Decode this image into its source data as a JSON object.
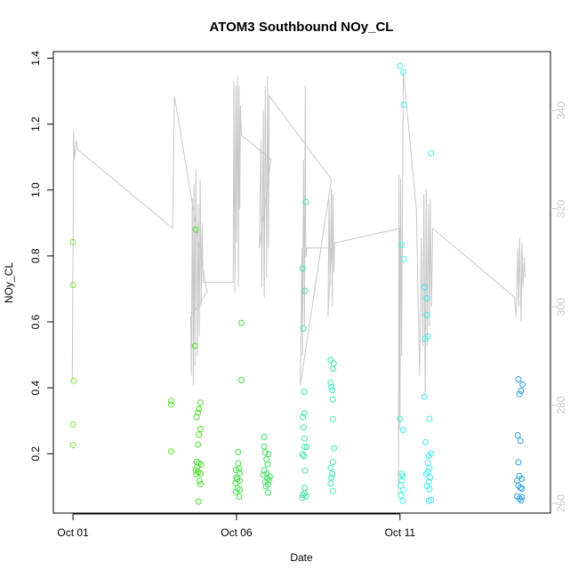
{
  "chart_data": {
    "type": "scatter",
    "title": "ATOM3 Southbound NOy_CL",
    "xlabel": "Date",
    "ylabel": "NOy_CL",
    "x_unit": "days after Oct 01",
    "xlim": [
      -0.6,
      14.6
    ],
    "ylim": [
      0.02,
      1.42
    ],
    "y2lim": [
      258,
      352
    ],
    "x_ticks": [
      {
        "v": 0,
        "label": "Oct 01"
      },
      {
        "v": 5,
        "label": "Oct 06"
      },
      {
        "v": 10,
        "label": "Oct 11"
      }
    ],
    "y_ticks": [
      {
        "v": 0.2,
        "label": "0.2"
      },
      {
        "v": 0.4,
        "label": "0.4"
      },
      {
        "v": 0.6,
        "label": "0.6"
      },
      {
        "v": 0.8,
        "label": "0.8"
      },
      {
        "v": 1.0,
        "label": "1.0"
      },
      {
        "v": 1.2,
        "label": "1.2"
      },
      {
        "v": 1.4,
        "label": "1.4"
      }
    ],
    "y2_ticks": [
      {
        "v": 260,
        "label": "260"
      },
      {
        "v": 280,
        "label": "280"
      },
      {
        "v": 300,
        "label": "300"
      },
      {
        "v": 320,
        "label": "320"
      },
      {
        "v": 340,
        "label": "340"
      }
    ],
    "grid": false,
    "colors": {
      "axis": "#000000",
      "secondary_axis": "#c8c8c8",
      "gray_line": "#c8c8c8"
    },
    "points": [
      {
        "x": 0.0,
        "y": 0.842,
        "color": "#7fe62b"
      },
      {
        "x": 0.0,
        "y": 0.712,
        "color": "#7fe62b"
      },
      {
        "x": 0.02,
        "y": 0.421,
        "color": "#7fe62b"
      },
      {
        "x": 0.0,
        "y": 0.289,
        "color": "#7fe62b"
      },
      {
        "x": 0.0,
        "y": 0.226,
        "color": "#7fe62b"
      },
      {
        "x": 3.0,
        "y": 0.36,
        "color": "#5fe02b"
      },
      {
        "x": 3.0,
        "y": 0.349,
        "color": "#5fe02b"
      },
      {
        "x": 3.0,
        "y": 0.207,
        "color": "#5fe02b"
      },
      {
        "x": 3.75,
        "y": 0.88,
        "color": "#4ce02c"
      },
      {
        "x": 3.73,
        "y": 0.527,
        "color": "#4ce02c"
      },
      {
        "x": 3.78,
        "y": 0.311,
        "color": "#4ce02c"
      },
      {
        "x": 3.9,
        "y": 0.355,
        "color": "#4ce02c"
      },
      {
        "x": 3.85,
        "y": 0.336,
        "color": "#4ce02c"
      },
      {
        "x": 3.82,
        "y": 0.325,
        "color": "#4ce02c"
      },
      {
        "x": 3.9,
        "y": 0.275,
        "color": "#4ce02c"
      },
      {
        "x": 3.85,
        "y": 0.258,
        "color": "#4ce02c"
      },
      {
        "x": 3.82,
        "y": 0.228,
        "color": "#4ce02c"
      },
      {
        "x": 3.78,
        "y": 0.176,
        "color": "#4ce02c"
      },
      {
        "x": 3.85,
        "y": 0.171,
        "color": "#4ce02c"
      },
      {
        "x": 3.92,
        "y": 0.167,
        "color": "#4ce02c"
      },
      {
        "x": 3.8,
        "y": 0.16,
        "color": "#4ce02c"
      },
      {
        "x": 3.75,
        "y": 0.15,
        "color": "#4ce02c"
      },
      {
        "x": 3.83,
        "y": 0.144,
        "color": "#4ce02c"
      },
      {
        "x": 3.9,
        "y": 0.14,
        "color": "#4ce02c"
      },
      {
        "x": 3.77,
        "y": 0.138,
        "color": "#4ce02c"
      },
      {
        "x": 3.87,
        "y": 0.118,
        "color": "#4ce02c"
      },
      {
        "x": 3.9,
        "y": 0.108,
        "color": "#4ce02c"
      },
      {
        "x": 3.84,
        "y": 0.055,
        "color": "#4ce02c"
      },
      {
        "x": 5.15,
        "y": 0.597,
        "color": "#3fe040"
      },
      {
        "x": 5.15,
        "y": 0.423,
        "color": "#3fe040"
      },
      {
        "x": 5.05,
        "y": 0.205,
        "color": "#3fe040"
      },
      {
        "x": 5.05,
        "y": 0.171,
        "color": "#3fe040"
      },
      {
        "x": 5.08,
        "y": 0.155,
        "color": "#3fe040"
      },
      {
        "x": 4.98,
        "y": 0.151,
        "color": "#3fe040"
      },
      {
        "x": 5.1,
        "y": 0.141,
        "color": "#3fe040"
      },
      {
        "x": 5.0,
        "y": 0.128,
        "color": "#3fe040"
      },
      {
        "x": 5.02,
        "y": 0.123,
        "color": "#3fe040"
      },
      {
        "x": 5.1,
        "y": 0.118,
        "color": "#3fe040"
      },
      {
        "x": 4.97,
        "y": 0.111,
        "color": "#3fe040"
      },
      {
        "x": 5.03,
        "y": 0.095,
        "color": "#3fe040"
      },
      {
        "x": 5.1,
        "y": 0.091,
        "color": "#3fe040"
      },
      {
        "x": 4.98,
        "y": 0.084,
        "color": "#3fe040"
      },
      {
        "x": 5.08,
        "y": 0.07,
        "color": "#3fe040"
      },
      {
        "x": 5.85,
        "y": 0.251,
        "color": "#40e060"
      },
      {
        "x": 5.85,
        "y": 0.222,
        "color": "#40e060"
      },
      {
        "x": 5.88,
        "y": 0.204,
        "color": "#40e060"
      },
      {
        "x": 5.98,
        "y": 0.199,
        "color": "#40e060"
      },
      {
        "x": 5.92,
        "y": 0.183,
        "color": "#40e060"
      },
      {
        "x": 5.95,
        "y": 0.168,
        "color": "#40e060"
      },
      {
        "x": 5.85,
        "y": 0.15,
        "color": "#40e060"
      },
      {
        "x": 5.92,
        "y": 0.14,
        "color": "#40e060"
      },
      {
        "x": 5.82,
        "y": 0.136,
        "color": "#40e060"
      },
      {
        "x": 6.02,
        "y": 0.131,
        "color": "#40e060"
      },
      {
        "x": 5.95,
        "y": 0.125,
        "color": "#40e060"
      },
      {
        "x": 6.0,
        "y": 0.12,
        "color": "#40e060"
      },
      {
        "x": 5.88,
        "y": 0.114,
        "color": "#40e060"
      },
      {
        "x": 5.96,
        "y": 0.107,
        "color": "#40e060"
      },
      {
        "x": 5.9,
        "y": 0.101,
        "color": "#40e060"
      },
      {
        "x": 5.97,
        "y": 0.082,
        "color": "#40e060"
      },
      {
        "x": 7.12,
        "y": 0.964,
        "color": "#3fe6a0"
      },
      {
        "x": 7.1,
        "y": 0.694,
        "color": "#3fe6a0"
      },
      {
        "x": 7.02,
        "y": 0.762,
        "color": "#3fe6a0"
      },
      {
        "x": 7.05,
        "y": 0.58,
        "color": "#3fe6a0"
      },
      {
        "x": 7.07,
        "y": 0.388,
        "color": "#3fe6a0"
      },
      {
        "x": 7.08,
        "y": 0.323,
        "color": "#3fe6a0"
      },
      {
        "x": 7.03,
        "y": 0.311,
        "color": "#3fe6a0"
      },
      {
        "x": 7.05,
        "y": 0.28,
        "color": "#3fe6a0"
      },
      {
        "x": 7.08,
        "y": 0.246,
        "color": "#3fe6a0"
      },
      {
        "x": 7.15,
        "y": 0.221,
        "color": "#3fe6a0"
      },
      {
        "x": 7.08,
        "y": 0.221,
        "color": "#3fe6a0"
      },
      {
        "x": 7.02,
        "y": 0.198,
        "color": "#3fe6a0"
      },
      {
        "x": 7.06,
        "y": 0.193,
        "color": "#3fe6a0"
      },
      {
        "x": 7.1,
        "y": 0.149,
        "color": "#3fe6a0"
      },
      {
        "x": 7.09,
        "y": 0.097,
        "color": "#3fe6a0"
      },
      {
        "x": 7.08,
        "y": 0.08,
        "color": "#3fe6a0"
      },
      {
        "x": 7.03,
        "y": 0.076,
        "color": "#3fe6a0"
      },
      {
        "x": 7.13,
        "y": 0.071,
        "color": "#3fe6a0"
      },
      {
        "x": 7.01,
        "y": 0.066,
        "color": "#3fe6a0"
      },
      {
        "x": 7.88,
        "y": 0.485,
        "color": "#40e6b8"
      },
      {
        "x": 7.97,
        "y": 0.474,
        "color": "#40e6b8"
      },
      {
        "x": 7.95,
        "y": 0.458,
        "color": "#40e6b8"
      },
      {
        "x": 7.88,
        "y": 0.416,
        "color": "#40e6b8"
      },
      {
        "x": 7.9,
        "y": 0.402,
        "color": "#40e6b8"
      },
      {
        "x": 7.93,
        "y": 0.393,
        "color": "#40e6b8"
      },
      {
        "x": 7.95,
        "y": 0.365,
        "color": "#40e6b8"
      },
      {
        "x": 7.95,
        "y": 0.305,
        "color": "#40e6b8"
      },
      {
        "x": 7.98,
        "y": 0.217,
        "color": "#40e6b8"
      },
      {
        "x": 7.95,
        "y": 0.175,
        "color": "#40e6b8"
      },
      {
        "x": 7.88,
        "y": 0.157,
        "color": "#40e6b8"
      },
      {
        "x": 7.93,
        "y": 0.139,
        "color": "#40e6b8"
      },
      {
        "x": 7.9,
        "y": 0.128,
        "color": "#40e6b8"
      },
      {
        "x": 7.88,
        "y": 0.11,
        "color": "#40e6b8"
      },
      {
        "x": 7.95,
        "y": 0.087,
        "color": "#40e6b8"
      },
      {
        "x": 10.0,
        "y": 1.376,
        "color": "#3ff0e6"
      },
      {
        "x": 10.12,
        "y": 1.259,
        "color": "#3ff0e6"
      },
      {
        "x": 10.1,
        "y": 1.357,
        "color": "#3ff0e6"
      },
      {
        "x": 10.05,
        "y": 0.833,
        "color": "#3ff0e6"
      },
      {
        "x": 10.12,
        "y": 0.791,
        "color": "#3ff0e6"
      },
      {
        "x": 10.0,
        "y": 0.306,
        "color": "#3ff0e6"
      },
      {
        "x": 10.1,
        "y": 0.272,
        "color": "#3ff0e6"
      },
      {
        "x": 10.05,
        "y": 0.139,
        "color": "#3ff0e6"
      },
      {
        "x": 10.08,
        "y": 0.132,
        "color": "#3ff0e6"
      },
      {
        "x": 10.05,
        "y": 0.119,
        "color": "#3ff0e6"
      },
      {
        "x": 10.02,
        "y": 0.103,
        "color": "#3ff0e6"
      },
      {
        "x": 10.1,
        "y": 0.09,
        "color": "#3ff0e6"
      },
      {
        "x": 10.03,
        "y": 0.073,
        "color": "#3ff0e6"
      },
      {
        "x": 10.08,
        "y": 0.057,
        "color": "#3ff0e6"
      },
      {
        "x": 10.95,
        "y": 1.112,
        "color": "#3fe6f0"
      },
      {
        "x": 10.75,
        "y": 0.705,
        "color": "#3fe6f0"
      },
      {
        "x": 10.82,
        "y": 0.672,
        "color": "#3fe6f0"
      },
      {
        "x": 10.82,
        "y": 0.621,
        "color": "#3fe6f0"
      },
      {
        "x": 10.85,
        "y": 0.556,
        "color": "#3fe6f0"
      },
      {
        "x": 10.77,
        "y": 0.549,
        "color": "#3fe6f0"
      },
      {
        "x": 10.75,
        "y": 0.373,
        "color": "#3fe6f0"
      },
      {
        "x": 10.9,
        "y": 0.306,
        "color": "#3fe6f0"
      },
      {
        "x": 10.78,
        "y": 0.235,
        "color": "#3fe6f0"
      },
      {
        "x": 10.95,
        "y": 0.201,
        "color": "#3fe6f0"
      },
      {
        "x": 10.88,
        "y": 0.194,
        "color": "#3fe6f0"
      },
      {
        "x": 10.85,
        "y": 0.173,
        "color": "#3fe6f0"
      },
      {
        "x": 10.9,
        "y": 0.157,
        "color": "#3fe6f0"
      },
      {
        "x": 10.85,
        "y": 0.145,
        "color": "#3fe6f0"
      },
      {
        "x": 10.8,
        "y": 0.138,
        "color": "#3fe6f0"
      },
      {
        "x": 10.92,
        "y": 0.128,
        "color": "#3fe6f0"
      },
      {
        "x": 10.88,
        "y": 0.115,
        "color": "#3fe6f0"
      },
      {
        "x": 10.82,
        "y": 0.102,
        "color": "#3fe6f0"
      },
      {
        "x": 10.9,
        "y": 0.093,
        "color": "#3fe6f0"
      },
      {
        "x": 10.95,
        "y": 0.06,
        "color": "#3fe6f0"
      },
      {
        "x": 10.88,
        "y": 0.057,
        "color": "#3fe6f0"
      },
      {
        "x": 13.62,
        "y": 0.426,
        "color": "#2a9ee0"
      },
      {
        "x": 13.75,
        "y": 0.41,
        "color": "#2a9ee0"
      },
      {
        "x": 13.7,
        "y": 0.391,
        "color": "#2a9ee0"
      },
      {
        "x": 13.65,
        "y": 0.381,
        "color": "#2a9ee0"
      },
      {
        "x": 13.6,
        "y": 0.256,
        "color": "#2a9ee0"
      },
      {
        "x": 13.68,
        "y": 0.239,
        "color": "#2a9ee0"
      },
      {
        "x": 13.62,
        "y": 0.174,
        "color": "#2a9ee0"
      },
      {
        "x": 13.65,
        "y": 0.133,
        "color": "#2a9ee0"
      },
      {
        "x": 13.72,
        "y": 0.124,
        "color": "#2a9ee0"
      },
      {
        "x": 13.58,
        "y": 0.119,
        "color": "#2a9ee0"
      },
      {
        "x": 13.62,
        "y": 0.103,
        "color": "#2a9ee0"
      },
      {
        "x": 13.68,
        "y": 0.097,
        "color": "#2a9ee0"
      },
      {
        "x": 13.73,
        "y": 0.094,
        "color": "#2a9ee0"
      },
      {
        "x": 13.58,
        "y": 0.071,
        "color": "#2a9ee0"
      },
      {
        "x": 13.73,
        "y": 0.068,
        "color": "#2a9ee0"
      },
      {
        "x": 13.65,
        "y": 0.064,
        "color": "#2a9ee0"
      },
      {
        "x": 13.7,
        "y": 0.058,
        "color": "#2a9ee0"
      }
    ],
    "secondary_line_y2": [
      [
        -0.02,
        285
      ],
      [
        0.02,
        336
      ],
      [
        0.05,
        330
      ],
      [
        0.1,
        334
      ],
      [
        0.15,
        332
      ],
      [
        3.05,
        316
      ],
      [
        3.1,
        343
      ],
      [
        4.1,
        303
      ],
      [
        3.6,
        298
      ],
      [
        3.62,
        286
      ],
      [
        3.65,
        322
      ],
      [
        3.68,
        284
      ],
      [
        3.7,
        325
      ],
      [
        3.73,
        288
      ],
      [
        3.76,
        328
      ],
      [
        3.8,
        290
      ],
      [
        3.83,
        321
      ],
      [
        3.86,
        294
      ],
      [
        3.89,
        326
      ],
      [
        3.92,
        300
      ],
      [
        3.95,
        317
      ],
      [
        3.98,
        305
      ],
      [
        4.9,
        305
      ],
      [
        4.92,
        346
      ],
      [
        4.95,
        303
      ],
      [
        4.98,
        345
      ],
      [
        5.0,
        313
      ],
      [
        5.03,
        347
      ],
      [
        5.06,
        304
      ],
      [
        5.08,
        345
      ],
      [
        5.1,
        320
      ],
      [
        5.12,
        341
      ],
      [
        5.15,
        335
      ],
      [
        6.05,
        330
      ],
      [
        5.7,
        312
      ],
      [
        5.75,
        334
      ],
      [
        5.78,
        304
      ],
      [
        5.82,
        340
      ],
      [
        5.85,
        302
      ],
      [
        5.88,
        345
      ],
      [
        5.92,
        306
      ],
      [
        5.95,
        347
      ],
      [
        5.98,
        312
      ],
      [
        6.0,
        343
      ],
      [
        7.9,
        326
      ],
      [
        6.95,
        284
      ],
      [
        7.0,
        312
      ],
      [
        7.02,
        290
      ],
      [
        7.05,
        330
      ],
      [
        7.08,
        296
      ],
      [
        7.1,
        345
      ],
      [
        7.12,
        310
      ],
      [
        7.15,
        312
      ],
      [
        7.9,
        312
      ],
      [
        7.8,
        298
      ],
      [
        7.83,
        322
      ],
      [
        7.86,
        304
      ],
      [
        7.9,
        324
      ],
      [
        7.93,
        300
      ],
      [
        7.95,
        323
      ],
      [
        7.98,
        307
      ],
      [
        8.0,
        313
      ],
      [
        10.0,
        316
      ],
      [
        9.95,
        262
      ],
      [
        9.97,
        327
      ],
      [
        10.0,
        275
      ],
      [
        10.02,
        326
      ],
      [
        10.05,
        290
      ],
      [
        10.08,
        325
      ],
      [
        10.1,
        348
      ],
      [
        10.5,
        320
      ],
      [
        10.6,
        286
      ],
      [
        10.65,
        314
      ],
      [
        10.7,
        292
      ],
      [
        10.73,
        323
      ],
      [
        10.77,
        282
      ],
      [
        10.8,
        324
      ],
      [
        10.83,
        292
      ],
      [
        10.87,
        321
      ],
      [
        10.9,
        296
      ],
      [
        10.93,
        322
      ],
      [
        10.96,
        300
      ],
      [
        11.0,
        316
      ],
      [
        13.5,
        302
      ],
      [
        13.55,
        298
      ],
      [
        13.6,
        312
      ],
      [
        13.63,
        300
      ],
      [
        13.66,
        314
      ],
      [
        13.7,
        297
      ],
      [
        13.73,
        313
      ],
      [
        13.76,
        304
      ],
      [
        13.8,
        310
      ],
      [
        13.83,
        306
      ]
    ]
  }
}
